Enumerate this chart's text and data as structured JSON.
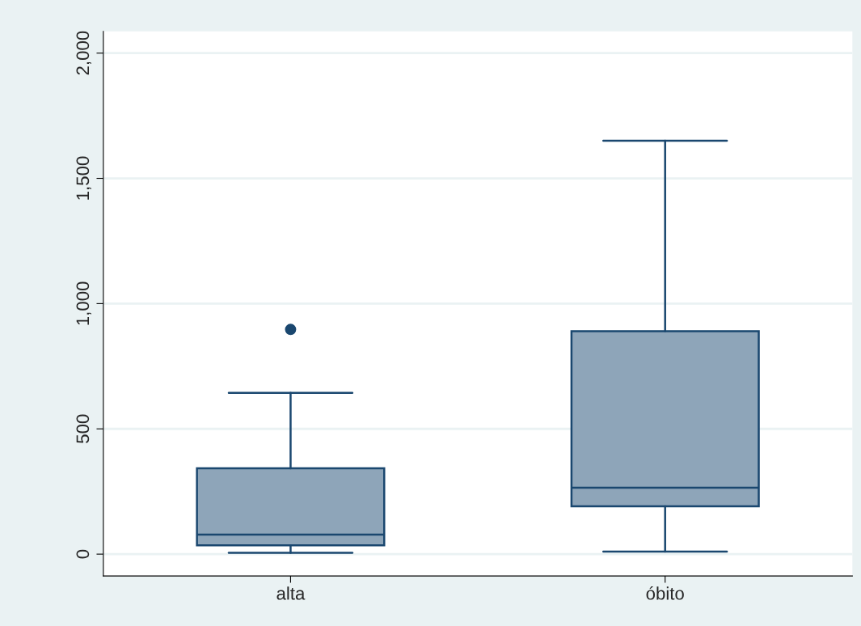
{
  "chart_data": {
    "type": "box",
    "categories": [
      "alta",
      "óbito"
    ],
    "boxes": [
      {
        "low": 5,
        "q1": 35,
        "median": 78,
        "q3": 343,
        "high": 644,
        "outliers": [
          897
        ]
      },
      {
        "low": 10,
        "q1": 191,
        "median": 265,
        "q3": 890,
        "high": 1650
      }
    ],
    "color": "#8ea5b9",
    "ylim": [
      -87,
      2087
    ],
    "yticks": [
      0,
      500,
      {
        "value": 1000,
        "label": "1,000"
      },
      {
        "value": 1500,
        "label": "1,500"
      },
      {
        "value": 2000,
        "label": "2,000"
      }
    ],
    "grid": "y"
  }
}
